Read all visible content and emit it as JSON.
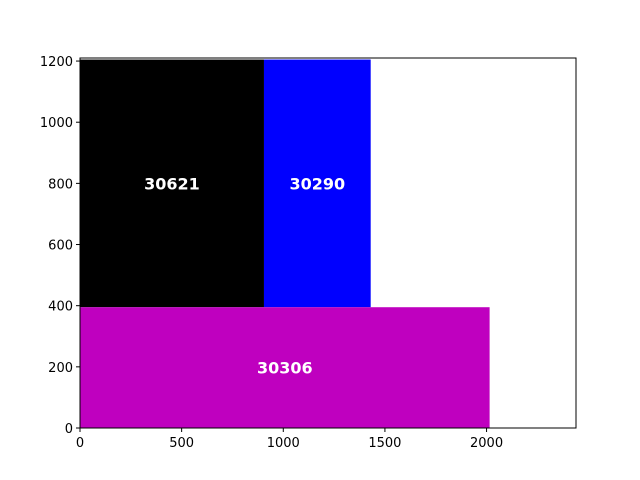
{
  "chart_data": {
    "type": "treemap",
    "title": "",
    "xlabel": "",
    "ylabel": "",
    "xlim": [
      0,
      2440
    ],
    "ylim": [
      0,
      1210
    ],
    "xticks": [
      0,
      500,
      1000,
      1500,
      2000
    ],
    "yticks": [
      0,
      200,
      400,
      600,
      800,
      1000,
      1200
    ],
    "grid": false,
    "rectangles": [
      {
        "label": "30621",
        "x": 0,
        "y": 395,
        "width": 905,
        "height": 810,
        "color": "#000000"
      },
      {
        "label": "30290",
        "x": 905,
        "y": 395,
        "width": 525,
        "height": 810,
        "color": "#0000ff"
      },
      {
        "label": "30306",
        "x": 0,
        "y": 0,
        "width": 2015,
        "height": 395,
        "color": "#bf00bf"
      }
    ]
  }
}
